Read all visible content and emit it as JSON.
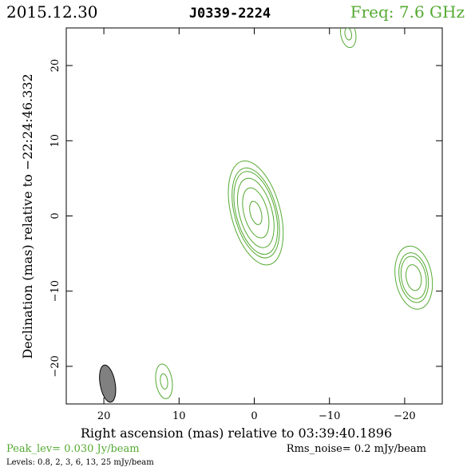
{
  "header": {
    "date": "2015.12.30",
    "source": "J0339-2224",
    "freq": "Freq: 7.6 GHz"
  },
  "footer": {
    "peak": "Peak_lev=  0.030 Jy/beam",
    "rms": "Rms_noise=   0.2 mJy/beam",
    "levels": "Levels: 0.8,   2,   3,   6,   13,   25 mJy/beam"
  },
  "colors": {
    "contour": "#55aa33",
    "beam_fill": "#808080",
    "axis": "#000000"
  },
  "chart_data": {
    "type": "contour",
    "xlabel": "Right ascension (mas) relative to 03:39:40.1896",
    "ylabel": "Declination (mas) relative to −22:24:46.332",
    "xlim": [
      25,
      -25
    ],
    "ylim": [
      -25,
      25
    ],
    "xticks": [
      20,
      10,
      0,
      -10,
      -20
    ],
    "yticks": [
      20,
      10,
      0,
      -10,
      -20
    ],
    "xtick_labels": [
      "20",
      "10",
      "0",
      "−10",
      "−20"
    ],
    "ytick_labels": [
      "20",
      "10",
      "0",
      "−10",
      "−20"
    ],
    "levels_mJy": [
      0.8,
      2,
      3,
      6,
      13,
      25
    ],
    "components": [
      {
        "x": -0.2,
        "y": 0.4,
        "peak_mJy": 30,
        "size_a": 4.8,
        "size_b": 2.2,
        "pa": -15
      },
      {
        "x": -21.2,
        "y": -8.2,
        "peak_mJy": 9,
        "size_a": 3.5,
        "size_b": 2.0,
        "pa": -10
      },
      {
        "x": 12.0,
        "y": -22.0,
        "peak_mJy": 2.5,
        "size_a": 2.8,
        "size_b": 1.3,
        "pa": -8
      },
      {
        "x": -12.5,
        "y": 24.2,
        "peak_mJy": 2.5,
        "size_a": 2.2,
        "size_b": 1.2,
        "pa": -10
      }
    ],
    "beam": {
      "x": 19.5,
      "y": -22.3,
      "major": 5.0,
      "minor": 2.0,
      "pa": -10
    }
  }
}
